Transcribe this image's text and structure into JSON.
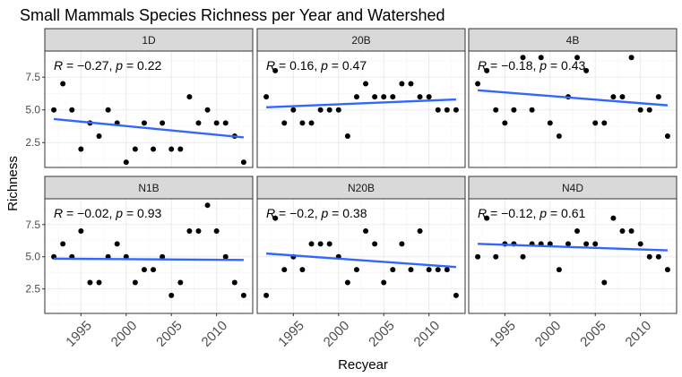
{
  "chart_data": {
    "type": "scatter",
    "title": "Small Mammals Species Richness per Year and Watershed",
    "xlabel": "Recyear",
    "ylabel": "Richness",
    "xlim": [
      1991,
      2014
    ],
    "ylim": [
      0.6,
      9.5
    ],
    "x_ticks": [
      1995,
      2000,
      2005,
      2010
    ],
    "y_ticks": [
      2.5,
      5.0,
      7.5
    ],
    "y_tick_labels": [
      "2.5",
      "5.0",
      "7.5"
    ],
    "grid": true,
    "layout": "facet grid, 2 rows x 3 columns",
    "colors": {
      "point": "#000000",
      "fit_line": "#3366ff",
      "strip": "#d9d9d9"
    },
    "panels": [
      {
        "name": "1D",
        "annotation": "R = −0.27, p = 0.22",
        "r_text": "−0.27",
        "p_text": "0.22",
        "fit": {
          "x": [
            1992,
            2013
          ],
          "y": [
            4.3,
            2.9
          ]
        },
        "x": [
          1992,
          1993,
          1994,
          1995,
          1996,
          1997,
          1998,
          1999,
          2000,
          2001,
          2002,
          2003,
          2004,
          2005,
          2006,
          2007,
          2008,
          2009,
          2010,
          2011,
          2012,
          2013
        ],
        "y": [
          5,
          7,
          5,
          2,
          4,
          3,
          5,
          4,
          1,
          2,
          4,
          2,
          4,
          2,
          2,
          6,
          4,
          5,
          4,
          4,
          3,
          1
        ]
      },
      {
        "name": "20B",
        "annotation": "R = 0.16, p = 0.47",
        "r_text": "0.16",
        "p_text": "0.47",
        "fit": {
          "x": [
            1992,
            2013
          ],
          "y": [
            5.2,
            5.8
          ]
        },
        "x": [
          1992,
          1993,
          1994,
          1995,
          1996,
          1997,
          1998,
          1999,
          2000,
          2001,
          2002,
          2003,
          2004,
          2005,
          2006,
          2007,
          2008,
          2009,
          2010,
          2011,
          2012,
          2013
        ],
        "y": [
          6,
          8,
          4,
          5,
          4,
          4,
          5,
          5,
          5,
          3,
          6,
          7,
          6,
          6,
          6,
          7,
          7,
          6,
          6,
          5,
          5,
          5
        ]
      },
      {
        "name": "4B",
        "annotation": "R = −0.18, p = 0.43",
        "r_text": "−0.18",
        "p_text": "0.43",
        "fit": {
          "x": [
            1992,
            2013
          ],
          "y": [
            6.5,
            5.35
          ]
        },
        "x": [
          1992,
          1993,
          1994,
          1995,
          1996,
          1997,
          1998,
          1999,
          2000,
          2001,
          2002,
          2003,
          2004,
          2005,
          2006,
          2007,
          2008,
          2009,
          2010,
          2011,
          2012,
          2013
        ],
        "y": [
          7,
          8,
          5,
          4,
          5,
          9,
          5,
          9,
          4,
          3,
          6,
          9,
          8,
          4,
          4,
          6,
          6,
          9,
          5,
          5,
          6,
          3
        ]
      },
      {
        "name": "N1B",
        "annotation": "R = −0.02, p = 0.93",
        "r_text": "−0.02",
        "p_text": "0.93",
        "fit": {
          "x": [
            1992,
            2013
          ],
          "y": [
            4.85,
            4.75
          ]
        },
        "x": [
          1992,
          1993,
          1994,
          1995,
          1996,
          1997,
          1998,
          1999,
          2000,
          2001,
          2002,
          2003,
          2004,
          2005,
          2006,
          2007,
          2008,
          2009,
          2010,
          2011,
          2012,
          2013
        ],
        "y": [
          5,
          6,
          5,
          7,
          3,
          3,
          5,
          6,
          5,
          3,
          4,
          4,
          5,
          2,
          3,
          7,
          7,
          9,
          7,
          5,
          3,
          2
        ]
      },
      {
        "name": "N20B",
        "annotation": "R = −0.2, p = 0.38",
        "r_text": "−0.2",
        "p_text": "0.38",
        "fit": {
          "x": [
            1992,
            2013
          ],
          "y": [
            5.25,
            4.2
          ]
        },
        "x": [
          1992,
          1993,
          1994,
          1995,
          1996,
          1997,
          1998,
          1999,
          2000,
          2001,
          2002,
          2003,
          2004,
          2005,
          2006,
          2007,
          2008,
          2009,
          2010,
          2011,
          2012,
          2013
        ],
        "y": [
          2,
          8,
          4,
          5,
          4,
          6,
          6,
          6,
          5,
          3,
          4,
          7,
          6,
          3,
          4,
          6,
          4,
          7,
          4,
          4,
          4,
          2
        ]
      },
      {
        "name": "N4D",
        "annotation": "R = −0.12, p = 0.61",
        "r_text": "−0.12",
        "p_text": "0.61",
        "fit": {
          "x": [
            1992,
            2013
          ],
          "y": [
            6.0,
            5.5
          ]
        },
        "x": [
          1992,
          1993,
          1994,
          1995,
          1996,
          1997,
          1998,
          1999,
          2000,
          2001,
          2002,
          2003,
          2004,
          2005,
          2006,
          2007,
          2008,
          2009,
          2010,
          2011,
          2012,
          2013
        ],
        "y": [
          5,
          8,
          5,
          6,
          6,
          5,
          6,
          6,
          6,
          4,
          6,
          7,
          6,
          6,
          3,
          8,
          7,
          7,
          6,
          5,
          5,
          4
        ]
      }
    ]
  }
}
